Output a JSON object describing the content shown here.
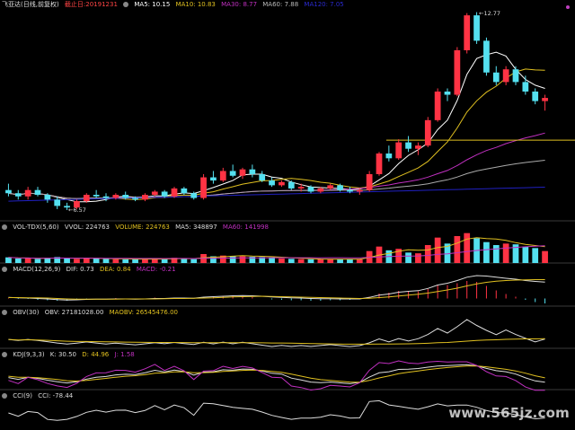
{
  "main": {
    "title": "飞亚达(日线,前复权)",
    "end_date": "截止日:20191231",
    "ma": [
      {
        "label": "MA5: 10.15",
        "color": "#ffffff"
      },
      {
        "label": "MA10: 10.83",
        "color": "#e0c020"
      },
      {
        "label": "MA30: 8.77",
        "color": "#c030c0"
      },
      {
        "label": "MA60: 7.88",
        "color": "#aaaaaa"
      },
      {
        "label": "MA120: 7.05",
        "color": "#2020c0"
      }
    ],
    "high_label": "12.77",
    "low_label": "6.57"
  },
  "vol": {
    "name": "VOL-TDX(5,60)",
    "items": [
      {
        "label": "VVOL: 224763",
        "color": "#dddddd"
      },
      {
        "label": "VOLUME: 224763",
        "color": "#e0c020"
      },
      {
        "label": "MA5: 348897",
        "color": "#dddddd"
      },
      {
        "label": "MA60: 141998",
        "color": "#c030c0"
      }
    ]
  },
  "macd": {
    "name": "MACD(12,26,9)",
    "items": [
      {
        "label": "DIF: 0.73",
        "color": "#dddddd"
      },
      {
        "label": "DEA: 0.84",
        "color": "#e0c020"
      },
      {
        "label": "MACD: -0.21",
        "color": "#c030c0"
      }
    ]
  },
  "obv": {
    "name": "OBV(30)",
    "items": [
      {
        "label": "OBV: 27181028.00",
        "color": "#dddddd"
      },
      {
        "label": "MAOBV: 26545476.00",
        "color": "#e0c020"
      }
    ]
  },
  "kdj": {
    "name": "KDJ(9,3,3)",
    "items": [
      {
        "label": "K: 30.50",
        "color": "#dddddd"
      },
      {
        "label": "D: 44.96",
        "color": "#e0c020"
      },
      {
        "label": "J: 1.58",
        "color": "#c030c0"
      }
    ]
  },
  "cci": {
    "name": "CCI(9)",
    "items": [
      {
        "label": "CCI: -78.44",
        "color": "#dddddd"
      }
    ]
  },
  "watermark": "www.565jz.com",
  "colors": {
    "up": "#ff3344",
    "down": "#54e0f0",
    "bg": "#000000",
    "grid": "#333333"
  },
  "chart_data": {
    "type": "candlestick",
    "note_price_range": [
      6.57,
      12.77
    ],
    "candles": [
      [
        7.2,
        7.4,
        7.0,
        7.1
      ],
      [
        7.1,
        7.2,
        6.9,
        7.0
      ],
      [
        7.0,
        7.3,
        6.9,
        7.2
      ],
      [
        7.2,
        7.3,
        7.0,
        7.05
      ],
      [
        7.05,
        7.1,
        6.8,
        6.9
      ],
      [
        6.9,
        7.0,
        6.6,
        6.7
      ],
      [
        6.7,
        6.8,
        6.57,
        6.65
      ],
      [
        6.65,
        6.9,
        6.6,
        6.85
      ],
      [
        6.85,
        7.1,
        6.8,
        7.05
      ],
      [
        7.05,
        7.2,
        6.95,
        7.0
      ],
      [
        7.0,
        7.1,
        6.85,
        6.95
      ],
      [
        6.95,
        7.1,
        6.9,
        7.05
      ],
      [
        7.05,
        7.15,
        6.9,
        6.95
      ],
      [
        6.95,
        7.0,
        6.85,
        6.9
      ],
      [
        6.9,
        7.1,
        6.85,
        7.05
      ],
      [
        7.05,
        7.2,
        7.0,
        7.15
      ],
      [
        7.15,
        7.2,
        6.95,
        7.0
      ],
      [
        7.0,
        7.3,
        6.95,
        7.25
      ],
      [
        7.25,
        7.3,
        7.05,
        7.1
      ],
      [
        7.1,
        7.15,
        6.9,
        6.95
      ],
      [
        6.95,
        7.7,
        6.9,
        7.6
      ],
      [
        7.6,
        7.8,
        7.4,
        7.5
      ],
      [
        7.5,
        7.9,
        7.45,
        7.8
      ],
      [
        7.8,
        8.0,
        7.6,
        7.65
      ],
      [
        7.65,
        7.9,
        7.55,
        7.85
      ],
      [
        7.85,
        8.0,
        7.6,
        7.7
      ],
      [
        7.7,
        7.8,
        7.45,
        7.5
      ],
      [
        7.5,
        7.6,
        7.3,
        7.35
      ],
      [
        7.35,
        7.5,
        7.3,
        7.45
      ],
      [
        7.45,
        7.5,
        7.2,
        7.25
      ],
      [
        7.25,
        7.4,
        7.15,
        7.3
      ],
      [
        7.3,
        7.35,
        7.1,
        7.15
      ],
      [
        7.15,
        7.3,
        7.1,
        7.25
      ],
      [
        7.25,
        7.4,
        7.2,
        7.35
      ],
      [
        7.35,
        7.4,
        7.15,
        7.2
      ],
      [
        7.2,
        7.3,
        7.1,
        7.15
      ],
      [
        7.15,
        7.25,
        7.05,
        7.2
      ],
      [
        7.2,
        7.8,
        7.15,
        7.7
      ],
      [
        7.7,
        8.4,
        7.65,
        8.35
      ],
      [
        8.35,
        8.6,
        8.1,
        8.2
      ],
      [
        8.2,
        8.8,
        8.15,
        8.7
      ],
      [
        8.7,
        8.9,
        8.4,
        8.5
      ],
      [
        8.5,
        8.7,
        8.3,
        8.6
      ],
      [
        8.6,
        9.5,
        8.55,
        9.4
      ],
      [
        9.4,
        10.4,
        9.35,
        10.3
      ],
      [
        10.3,
        10.4,
        10.0,
        10.2
      ],
      [
        10.2,
        11.7,
        10.15,
        11.6
      ],
      [
        11.6,
        12.77,
        11.5,
        12.7
      ],
      [
        12.7,
        12.8,
        11.8,
        11.9
      ],
      [
        11.9,
        12.0,
        10.8,
        10.9
      ],
      [
        10.9,
        11.1,
        10.5,
        10.6
      ],
      [
        10.6,
        11.1,
        10.5,
        11.0
      ],
      [
        11.0,
        11.1,
        10.5,
        10.6
      ],
      [
        10.6,
        10.8,
        10.2,
        10.3
      ],
      [
        10.3,
        10.4,
        9.9,
        10.0
      ],
      [
        10.0,
        10.2,
        9.7,
        10.1
      ]
    ],
    "volume": [
      38,
      30,
      32,
      28,
      35,
      40,
      30,
      28,
      33,
      30,
      28,
      26,
      25,
      24,
      28,
      30,
      27,
      35,
      30,
      26,
      60,
      45,
      50,
      48,
      45,
      42,
      40,
      38,
      30,
      28,
      26,
      25,
      24,
      26,
      27,
      25,
      24,
      80,
      110,
      85,
      95,
      70,
      65,
      120,
      170,
      130,
      180,
      200,
      165,
      140,
      120,
      130,
      125,
      110,
      100,
      80
    ],
    "macd_dif": [
      0.05,
      0.03,
      0.02,
      0.0,
      -0.02,
      -0.05,
      -0.07,
      -0.06,
      -0.04,
      -0.03,
      -0.03,
      -0.02,
      -0.02,
      -0.03,
      -0.02,
      0.0,
      0.0,
      0.02,
      0.02,
      0.01,
      0.06,
      0.08,
      0.1,
      0.12,
      0.13,
      0.12,
      0.1,
      0.07,
      0.05,
      0.03,
      0.02,
      0.0,
      -0.01,
      -0.01,
      -0.02,
      -0.02,
      -0.02,
      0.05,
      0.15,
      0.2,
      0.28,
      0.32,
      0.35,
      0.45,
      0.6,
      0.68,
      0.8,
      0.95,
      1.02,
      1.0,
      0.95,
      0.9,
      0.86,
      0.8,
      0.76,
      0.73
    ],
    "macd_dea": [
      0.04,
      0.04,
      0.03,
      0.03,
      0.02,
      0.0,
      -0.02,
      -0.03,
      -0.03,
      -0.03,
      -0.03,
      -0.03,
      -0.02,
      -0.02,
      -0.02,
      -0.02,
      -0.01,
      0.0,
      0.0,
      0.01,
      0.02,
      0.03,
      0.05,
      0.07,
      0.08,
      0.09,
      0.1,
      0.09,
      0.08,
      0.07,
      0.06,
      0.05,
      0.04,
      0.03,
      0.02,
      0.01,
      0.0,
      0.01,
      0.04,
      0.07,
      0.11,
      0.15,
      0.19,
      0.24,
      0.31,
      0.38,
      0.46,
      0.56,
      0.65,
      0.72,
      0.77,
      0.8,
      0.82,
      0.83,
      0.84,
      0.84
    ]
  }
}
